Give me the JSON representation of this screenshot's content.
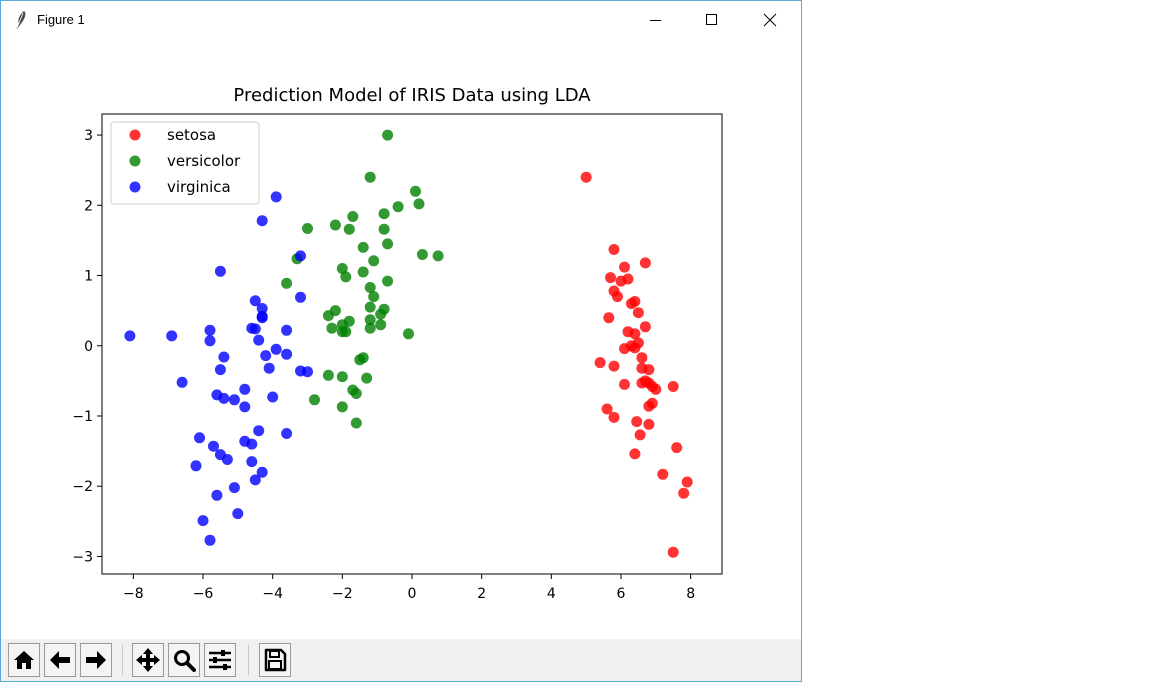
{
  "window": {
    "title": "Figure 1",
    "controls": [
      "minimize",
      "maximize",
      "close"
    ]
  },
  "toolbar": {
    "buttons": [
      {
        "name": "home",
        "icon": "home-icon"
      },
      {
        "name": "back",
        "icon": "arrow-left-icon"
      },
      {
        "name": "forward",
        "icon": "arrow-right-icon"
      },
      {
        "name": "pan",
        "icon": "move-icon"
      },
      {
        "name": "zoom",
        "icon": "magnifier-icon"
      },
      {
        "name": "configure-subplots",
        "icon": "sliders-icon"
      },
      {
        "name": "save",
        "icon": "floppy-disk-icon"
      }
    ]
  },
  "chart_data": {
    "type": "scatter",
    "title": "Prediction Model of IRIS Data using LDA",
    "xlabel": "",
    "ylabel": "",
    "xlim": [
      -8.9,
      8.9
    ],
    "ylim": [
      -3.25,
      3.3
    ],
    "xticks": [
      -8,
      -6,
      -4,
      -2,
      0,
      2,
      4,
      6,
      8
    ],
    "yticks": [
      -3,
      -2,
      -1,
      0,
      1,
      2,
      3
    ],
    "legend_position": "top-left",
    "grid": false,
    "series": [
      {
        "name": "setosa",
        "color": "#ff0000",
        "points": [
          [
            5.0,
            2.4
          ],
          [
            5.8,
            1.37
          ],
          [
            5.7,
            0.97
          ],
          [
            6.1,
            1.12
          ],
          [
            6.7,
            1.18
          ],
          [
            6.0,
            0.92
          ],
          [
            6.2,
            0.95
          ],
          [
            5.8,
            0.78
          ],
          [
            5.9,
            0.7
          ],
          [
            6.3,
            0.6
          ],
          [
            6.4,
            0.63
          ],
          [
            6.5,
            0.47
          ],
          [
            5.65,
            0.4
          ],
          [
            6.7,
            0.27
          ],
          [
            6.2,
            0.2
          ],
          [
            6.4,
            0.17
          ],
          [
            6.1,
            -0.04
          ],
          [
            6.4,
            -0.03
          ],
          [
            6.5,
            0.04
          ],
          [
            6.6,
            -0.17
          ],
          [
            5.4,
            -0.24
          ],
          [
            5.8,
            -0.29
          ],
          [
            6.6,
            -0.32
          ],
          [
            6.8,
            -0.34
          ],
          [
            6.1,
            -0.55
          ],
          [
            6.6,
            -0.53
          ],
          [
            6.8,
            -0.53
          ],
          [
            6.9,
            -0.58
          ],
          [
            7.0,
            -0.62
          ],
          [
            7.5,
            -0.58
          ],
          [
            6.9,
            -0.82
          ],
          [
            6.8,
            -0.86
          ],
          [
            5.6,
            -0.9
          ],
          [
            5.8,
            -1.02
          ],
          [
            6.45,
            -1.08
          ],
          [
            6.8,
            -1.12
          ],
          [
            6.55,
            -1.27
          ],
          [
            7.6,
            -1.45
          ],
          [
            6.4,
            -1.54
          ],
          [
            7.2,
            -1.83
          ],
          [
            7.9,
            -1.94
          ],
          [
            7.8,
            -2.1
          ],
          [
            7.5,
            -2.94
          ],
          [
            6.7,
            -0.5
          ],
          [
            6.3,
            0.0
          ]
        ]
      },
      {
        "name": "versicolor",
        "color": "#008000",
        "points": [
          [
            -0.7,
            3.0
          ],
          [
            -1.2,
            2.4
          ],
          [
            0.1,
            2.2
          ],
          [
            0.2,
            2.02
          ],
          [
            -0.4,
            1.98
          ],
          [
            -0.8,
            1.88
          ],
          [
            -1.7,
            1.84
          ],
          [
            -2.2,
            1.72
          ],
          [
            -3.0,
            1.67
          ],
          [
            -1.8,
            1.66
          ],
          [
            -0.8,
            1.66
          ],
          [
            -1.4,
            1.4
          ],
          [
            -0.7,
            1.45
          ],
          [
            0.3,
            1.3
          ],
          [
            0.75,
            1.28
          ],
          [
            -3.3,
            1.24
          ],
          [
            -1.1,
            1.21
          ],
          [
            -2.0,
            1.1
          ],
          [
            -1.4,
            1.05
          ],
          [
            -1.9,
            0.98
          ],
          [
            -0.7,
            0.92
          ],
          [
            -3.6,
            0.89
          ],
          [
            -1.2,
            0.83
          ],
          [
            -1.1,
            0.7
          ],
          [
            -1.2,
            0.55
          ],
          [
            -0.8,
            0.52
          ],
          [
            -0.9,
            0.45
          ],
          [
            -2.2,
            0.5
          ],
          [
            -2.4,
            0.43
          ],
          [
            -1.2,
            0.37
          ],
          [
            -1.8,
            0.35
          ],
          [
            -2.0,
            0.3
          ],
          [
            -0.9,
            0.3
          ],
          [
            -1.2,
            0.25
          ],
          [
            -2.3,
            0.25
          ],
          [
            -2.0,
            0.2
          ],
          [
            -1.9,
            0.2
          ],
          [
            -0.1,
            0.17
          ],
          [
            -1.4,
            -0.17
          ],
          [
            -1.5,
            -0.2
          ],
          [
            -2.4,
            -0.42
          ],
          [
            -2.0,
            -0.44
          ],
          [
            -1.3,
            -0.46
          ],
          [
            -1.7,
            -0.63
          ],
          [
            -1.6,
            -0.68
          ],
          [
            -2.8,
            -0.77
          ],
          [
            -2.0,
            -0.87
          ],
          [
            -1.6,
            -1.1
          ]
        ]
      },
      {
        "name": "virginica",
        "color": "#0000ff",
        "points": [
          [
            -3.9,
            2.12
          ],
          [
            -4.3,
            1.78
          ],
          [
            -3.2,
            1.28
          ],
          [
            -5.5,
            1.06
          ],
          [
            -4.5,
            0.64
          ],
          [
            -4.3,
            0.53
          ],
          [
            -3.2,
            0.69
          ],
          [
            -4.3,
            0.42
          ],
          [
            -4.3,
            0.4
          ],
          [
            -4.6,
            0.25
          ],
          [
            -4.5,
            0.24
          ],
          [
            -5.8,
            0.22
          ],
          [
            -3.6,
            0.22
          ],
          [
            -8.1,
            0.14
          ],
          [
            -6.9,
            0.14
          ],
          [
            -4.4,
            0.08
          ],
          [
            -5.8,
            0.07
          ],
          [
            -3.9,
            -0.05
          ],
          [
            -3.0,
            -0.37
          ],
          [
            -3.2,
            -0.36
          ],
          [
            -3.6,
            -0.12
          ],
          [
            -4.2,
            -0.14
          ],
          [
            -5.4,
            -0.16
          ],
          [
            -4.1,
            -0.32
          ],
          [
            -5.5,
            -0.34
          ],
          [
            -6.6,
            -0.52
          ],
          [
            -4.8,
            -0.62
          ],
          [
            -5.6,
            -0.7
          ],
          [
            -5.4,
            -0.75
          ],
          [
            -5.1,
            -0.77
          ],
          [
            -4.0,
            -0.73
          ],
          [
            -4.8,
            -0.87
          ],
          [
            -6.1,
            -1.31
          ],
          [
            -3.6,
            -1.25
          ],
          [
            -4.4,
            -1.21
          ],
          [
            -4.8,
            -1.36
          ],
          [
            -4.6,
            -1.4
          ],
          [
            -5.7,
            -1.43
          ],
          [
            -5.5,
            -1.55
          ],
          [
            -5.3,
            -1.62
          ],
          [
            -6.2,
            -1.71
          ],
          [
            -4.6,
            -1.65
          ],
          [
            -4.3,
            -1.8
          ],
          [
            -4.5,
            -1.91
          ],
          [
            -5.1,
            -2.02
          ],
          [
            -5.6,
            -2.13
          ],
          [
            -5.0,
            -2.39
          ],
          [
            -6.0,
            -2.49
          ],
          [
            -5.8,
            -2.77
          ]
        ]
      }
    ]
  }
}
